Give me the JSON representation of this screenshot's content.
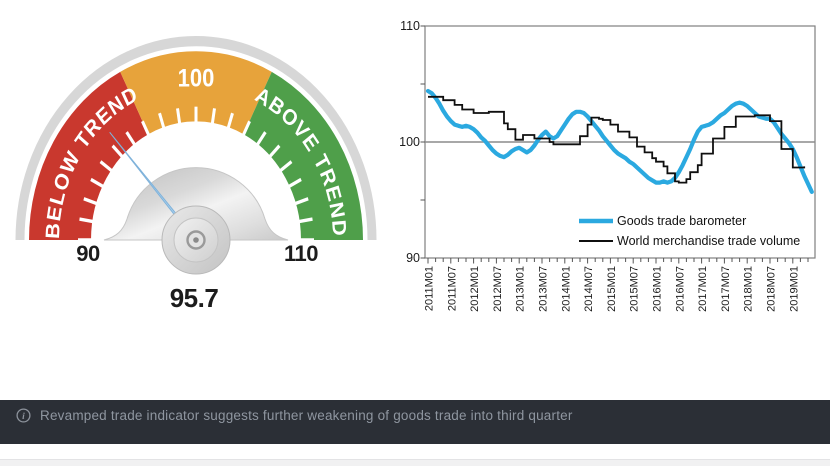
{
  "gauge": {
    "value": 95.7,
    "min": 90,
    "max": 110,
    "value_label": "95.7",
    "min_label": "90",
    "max_label": "110",
    "mid_label": "100",
    "below_label": "BELOW TREND",
    "above_label": "ABOVE TREND",
    "colors": {
      "red": "#c9382e",
      "orange": "#e7a33b",
      "green": "#4f9f4a",
      "ring": "#d7d7d7",
      "needle": "#a9cfec",
      "needle_edge": "#7fb2da",
      "label": "#1c1c1c"
    },
    "segments": [
      {
        "label": "BELOW TREND",
        "from": 90,
        "to": 97,
        "color": "#c9382e"
      },
      {
        "label": "100",
        "from": 97,
        "to": 103,
        "color": "#e7a33b"
      },
      {
        "label": "ABOVE TREND",
        "from": 103,
        "to": 110,
        "color": "#4f9f4a"
      }
    ]
  },
  "chart_data": {
    "type": "line",
    "title": "",
    "xlabel": "",
    "ylabel": "",
    "ylim": [
      90,
      110
    ],
    "y_ticks": [
      90,
      100,
      110
    ],
    "y_minor_ticks": [
      95,
      105
    ],
    "baseline": 100,
    "grid": "horizontal line at 100 only",
    "legend_position": "inside-bottom-center-right",
    "x_frequency": "monthly",
    "x_start": "2011M01",
    "x_tick_labels": [
      "2011M01",
      "2011M07",
      "2012M01",
      "2012M07",
      "2013M01",
      "2013M07",
      "2014M01",
      "2014M07",
      "2015M01",
      "2015M07",
      "2016M01",
      "2016M07",
      "2017M01",
      "2017M07",
      "2018M01",
      "2018M07",
      "2019M01"
    ],
    "series": [
      {
        "name": "Goods trade barometer",
        "color": "#2ba9e0",
        "line_width": 4.2,
        "style": "smooth",
        "x_start": "2011M01",
        "values": [
          104.4,
          104.2,
          103.8,
          103.3,
          102.7,
          102.2,
          101.8,
          101.5,
          101.4,
          101.3,
          101.4,
          101.3,
          101.1,
          100.8,
          100.4,
          100.1,
          99.7,
          99.3,
          99.0,
          98.8,
          98.7,
          98.9,
          99.2,
          99.4,
          99.5,
          99.3,
          99.1,
          99.3,
          99.7,
          100.2,
          100.6,
          100.9,
          100.5,
          100.3,
          100.5,
          101.0,
          101.5,
          102.0,
          102.4,
          102.6,
          102.6,
          102.5,
          102.2,
          101.8,
          101.4,
          101.0,
          100.5,
          100.1,
          99.7,
          99.3,
          99.0,
          98.8,
          98.6,
          98.3,
          98.1,
          97.8,
          97.5,
          97.2,
          96.9,
          96.7,
          96.5,
          96.5,
          96.6,
          96.5,
          96.6,
          96.9,
          97.4,
          98.0,
          98.7,
          99.4,
          100.2,
          100.9,
          101.3,
          101.4,
          101.5,
          101.7,
          102.0,
          102.3,
          102.5,
          102.8,
          103.1,
          103.3,
          103.4,
          103.3,
          103.1,
          102.8,
          102.5,
          102.2,
          102.1,
          102.0,
          102.0,
          101.7,
          101.2,
          100.7,
          100.3,
          99.9,
          99.4,
          98.7,
          97.9,
          97.1,
          96.4,
          95.7
        ]
      },
      {
        "name": "World merchandise trade volume",
        "color": "#0f0f0f",
        "line_width": 1.8,
        "style": "step",
        "x_start": "2011M01",
        "values": [
          103.9,
          103.9,
          103.9,
          103.9,
          103.6,
          103.6,
          103.6,
          103.2,
          103.2,
          102.8,
          102.8,
          102.8,
          102.5,
          102.5,
          102.5,
          102.5,
          102.6,
          102.6,
          102.6,
          102.6,
          101.6,
          101.1,
          101.1,
          100.2,
          100.2,
          100.6,
          100.6,
          100.6,
          100.3,
          100.3,
          100.3,
          100.3,
          100.0,
          99.8,
          99.8,
          99.8,
          99.8,
          99.8,
          99.8,
          99.8,
          100.5,
          100.5,
          101.5,
          102.1,
          102.1,
          102.0,
          101.9,
          101.9,
          101.5,
          101.5,
          100.9,
          100.9,
          100.9,
          100.4,
          100.4,
          99.6,
          99.6,
          99.1,
          99.1,
          98.6,
          98.3,
          98.3,
          97.9,
          97.3,
          97.3,
          96.6,
          96.5,
          96.5,
          96.8,
          97.4,
          97.4,
          98.0,
          99.0,
          99.0,
          99.0,
          100.3,
          100.3,
          100.3,
          101.3,
          101.3,
          101.3,
          102.2,
          102.2,
          102.2,
          102.2,
          102.2,
          102.3,
          102.3,
          102.3,
          102.3,
          101.8,
          101.8,
          101.8,
          99.4,
          99.4,
          99.4,
          97.8,
          97.8,
          97.8,
          97.9
        ]
      }
    ],
    "plot_colors": {
      "box_border": "#7f7f7f",
      "gridline": "#8c8c8c",
      "tick": "#555555",
      "tick_label": "#1c1c1c"
    }
  },
  "status_bar": {
    "icon": "info-icon",
    "text": "Revamped trade indicator suggests further weakening of goods trade into third quarter"
  }
}
